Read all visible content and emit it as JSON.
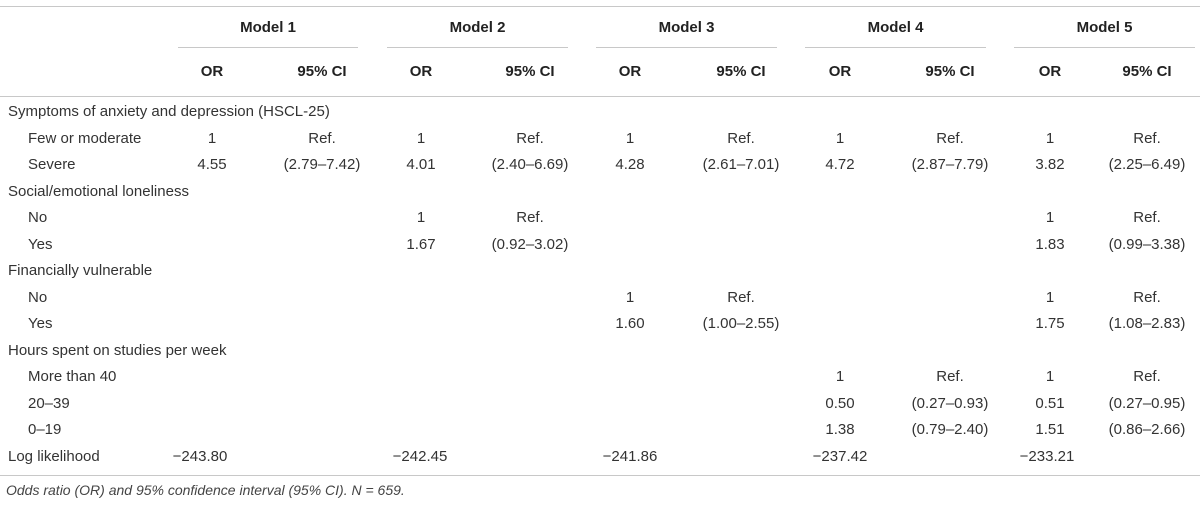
{
  "models": [
    "Model 1",
    "Model 2",
    "Model 3",
    "Model 4",
    "Model 5"
  ],
  "subheaders": [
    "OR",
    "95% CI"
  ],
  "rows": [
    {
      "label": "Symptoms of anxiety and depression (HSCL-25)",
      "group": true,
      "cells": []
    },
    {
      "label": "Few or moderate",
      "group": false,
      "cells": [
        "1",
        "Ref.",
        "1",
        "Ref.",
        "1",
        "Ref.",
        "1",
        "Ref.",
        "1",
        "Ref."
      ]
    },
    {
      "label": "Severe",
      "group": false,
      "cells": [
        "4.55",
        "(2.79–7.42)",
        "4.01",
        "(2.40–6.69)",
        "4.28",
        "(2.61–7.01)",
        "4.72",
        "(2.87–7.79)",
        "3.82",
        "(2.25–6.49)"
      ]
    },
    {
      "label": "Social/emotional loneliness",
      "group": true,
      "cells": []
    },
    {
      "label": "No",
      "group": false,
      "cells": [
        "",
        "",
        "1",
        "Ref.",
        "",
        "",
        "",
        "",
        "1",
        "Ref."
      ]
    },
    {
      "label": "Yes",
      "group": false,
      "cells": [
        "",
        "",
        "1.67",
        "(0.92–3.02)",
        "",
        "",
        "",
        "",
        "1.83",
        "(0.99–3.38)"
      ]
    },
    {
      "label": "Financially vulnerable",
      "group": true,
      "cells": []
    },
    {
      "label": "No",
      "group": false,
      "cells": [
        "",
        "",
        "",
        "",
        "1",
        "Ref.",
        "",
        "",
        "1",
        "Ref."
      ]
    },
    {
      "label": "Yes",
      "group": false,
      "cells": [
        "",
        "",
        "",
        "",
        "1.60",
        "(1.00–2.55)",
        "",
        "",
        "1.75",
        "(1.08–2.83)"
      ]
    },
    {
      "label": "Hours spent on studies per week",
      "group": true,
      "cells": []
    },
    {
      "label": "More than 40",
      "group": false,
      "cells": [
        "",
        "",
        "",
        "",
        "",
        "",
        "1",
        "Ref.",
        "1",
        "Ref."
      ]
    },
    {
      "label": "20–39",
      "group": false,
      "cells": [
        "",
        "",
        "",
        "",
        "",
        "",
        "0.50",
        "(0.27–0.93)",
        "0.51",
        "(0.27–0.95)"
      ]
    },
    {
      "label": "0–19",
      "group": false,
      "cells": [
        "",
        "",
        "",
        "",
        "",
        "",
        "1.38",
        "(0.79–2.40)",
        "1.51",
        "(0.86–2.66)"
      ]
    },
    {
      "label": "Log likelihood",
      "group": true,
      "loglik": true,
      "cells": [
        "−243.80",
        "",
        "−242.45",
        "",
        "−241.86",
        "",
        "−237.42",
        "",
        "−233.21",
        ""
      ]
    }
  ],
  "footnote": "Odds ratio (OR) and 95% confidence interval (95% CI). N = 659."
}
